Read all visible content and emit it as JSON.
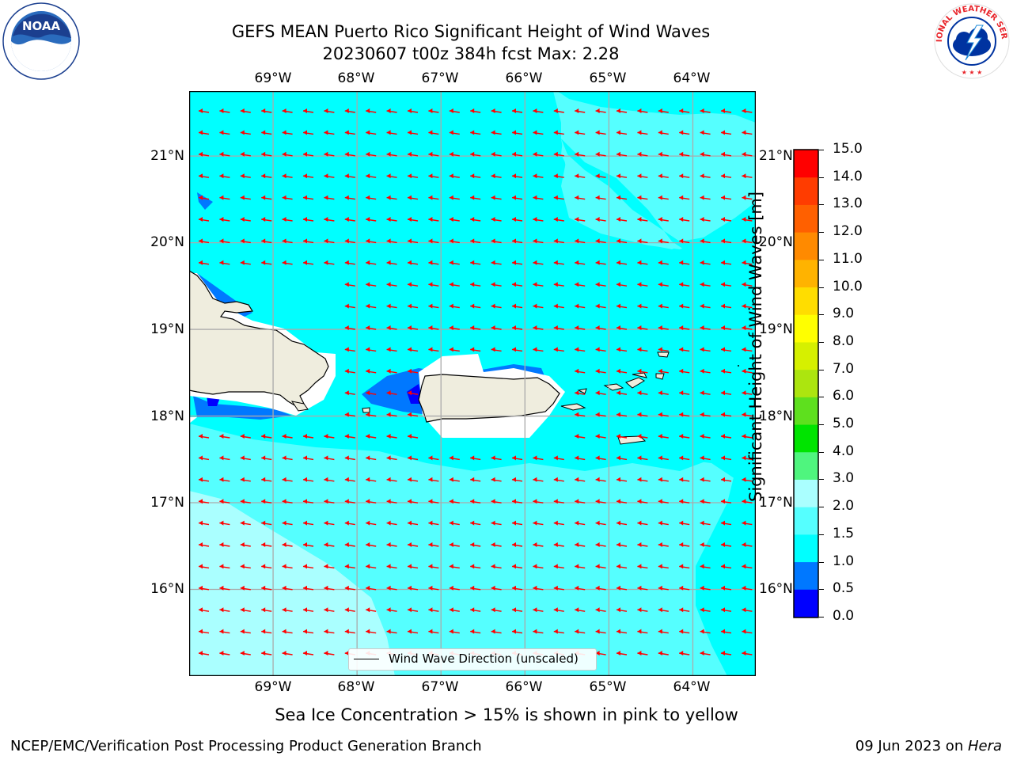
{
  "title": {
    "line1": "GEFS MEAN Puerto Rico Significant Height of Wind Waves",
    "line2": "20230607 t00z 384h fcst   Max: 2.28"
  },
  "logos": {
    "left": {
      "text": "NOAA",
      "ring_text": "NATIONAL OCEANIC AND ATMOSPHERIC ADMINISTRATION · U.S. DEPARTMENT OF COMMERCE"
    },
    "right": {
      "ring_text": "NATIONAL WEATHER SERVICE"
    }
  },
  "map": {
    "lon_labels": [
      "69°W",
      "68°W",
      "67°W",
      "66°W",
      "65°W",
      "64°W"
    ],
    "lat_labels": [
      "21°N",
      "20°N",
      "19°N",
      "18°N",
      "17°N",
      "16°N"
    ],
    "extent": {
      "lon_min": -70.0,
      "lon_max": -63.25,
      "lat_min": 15.0,
      "lat_max": 21.75
    },
    "wave_direction": "westward",
    "arrow_color": "#ff0000",
    "land_color": "#efedde"
  },
  "legend": {
    "label": "Wind Wave Direction (unscaled)"
  },
  "colorbar": {
    "label": "Significant Height of Wind Waves [m]",
    "ticks": [
      "0.0",
      "0.5",
      "1.0",
      "1.5",
      "2.0",
      "3.0",
      "4.0",
      "5.0",
      "6.0",
      "7.0",
      "8.0",
      "9.0",
      "10.0",
      "11.0",
      "12.0",
      "13.0",
      "14.0",
      "15.0"
    ],
    "colors": [
      "#0000ff",
      "#0078ff",
      "#00ffff",
      "#55ffff",
      "#aaffff",
      "#4ff57e",
      "#00e400",
      "#5ee01e",
      "#ace50f",
      "#d6f000",
      "#ffff00",
      "#ffdd00",
      "#ffb300",
      "#ff8a00",
      "#ff6000",
      "#ff3c00",
      "#ff0000"
    ]
  },
  "notes": {
    "sea_ice": "Sea Ice Concentration > 15% is shown in pink to yellow"
  },
  "footer": {
    "left": "NCEP/EMC/Verification Post Processing Product Generation Branch",
    "date": "09 Jun 2023 on ",
    "machine": "Hera"
  }
}
